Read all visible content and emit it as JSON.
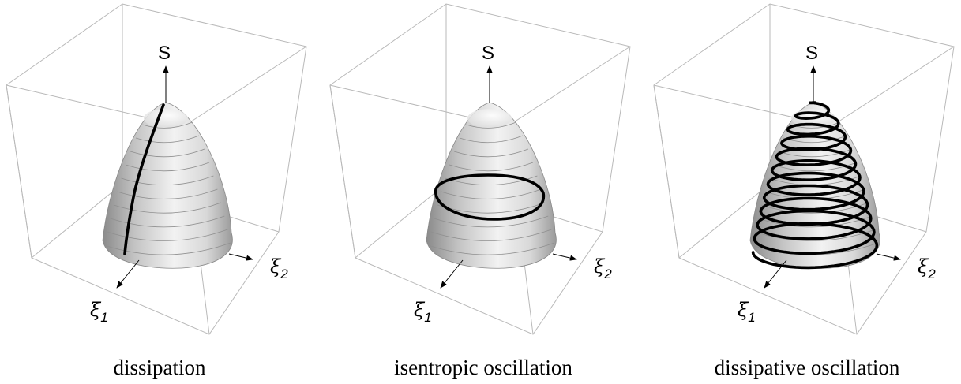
{
  "panels": [
    {
      "caption": "dissipation",
      "axes": {
        "vertical": "S",
        "x1_symbol": "ξ",
        "x1_subscript": "1",
        "x2_symbol": "ξ",
        "x2_subscript": "2"
      },
      "trajectory": "dissipation"
    },
    {
      "caption": "isentropic oscillation",
      "axes": {
        "vertical": "S",
        "x1_symbol": "ξ",
        "x1_subscript": "1",
        "x2_symbol": "ξ",
        "x2_subscript": "2"
      },
      "trajectory": "isentropic"
    },
    {
      "caption": "dissipative oscillation",
      "axes": {
        "vertical": "S",
        "x1_symbol": "ξ",
        "x1_subscript": "1",
        "x2_symbol": "ξ",
        "x2_subscript": "2"
      },
      "trajectory": "spiral"
    }
  ],
  "colors": {
    "box": "#b9b9b9",
    "surface_light": "#ffffff",
    "surface_dark": "#8a8a8a",
    "trajectory": "#000000"
  }
}
